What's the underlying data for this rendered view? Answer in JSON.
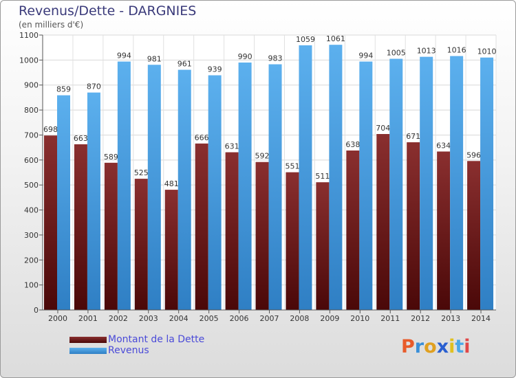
{
  "chart_data": {
    "type": "bar",
    "title": "Revenus/Dette - DARGNIES",
    "subtitle": "(en milliers d'€)",
    "categories": [
      "2000",
      "2001",
      "2002",
      "2003",
      "2004",
      "2005",
      "2006",
      "2007",
      "2008",
      "2009",
      "2010",
      "2011",
      "2012",
      "2013",
      "2014"
    ],
    "series": [
      {
        "name": "Montant de la Dette",
        "color": "#7b1f1f",
        "values": [
          698,
          663,
          589,
          525,
          481,
          666,
          631,
          592,
          551,
          511,
          638,
          704,
          671,
          634,
          596
        ]
      },
      {
        "name": "Revenus",
        "color": "#4fa3e3",
        "values": [
          859,
          870,
          994,
          981,
          961,
          939,
          990,
          983,
          1059,
          1061,
          994,
          1005,
          1013,
          1016,
          1010
        ]
      }
    ],
    "ylim": [
      0,
      1100
    ],
    "yticks": [
      0,
      100,
      200,
      300,
      400,
      500,
      600,
      700,
      800,
      900,
      1000,
      1100
    ],
    "grid": true,
    "legend_position": "bottom-left"
  },
  "logo_text": "Proxiti"
}
